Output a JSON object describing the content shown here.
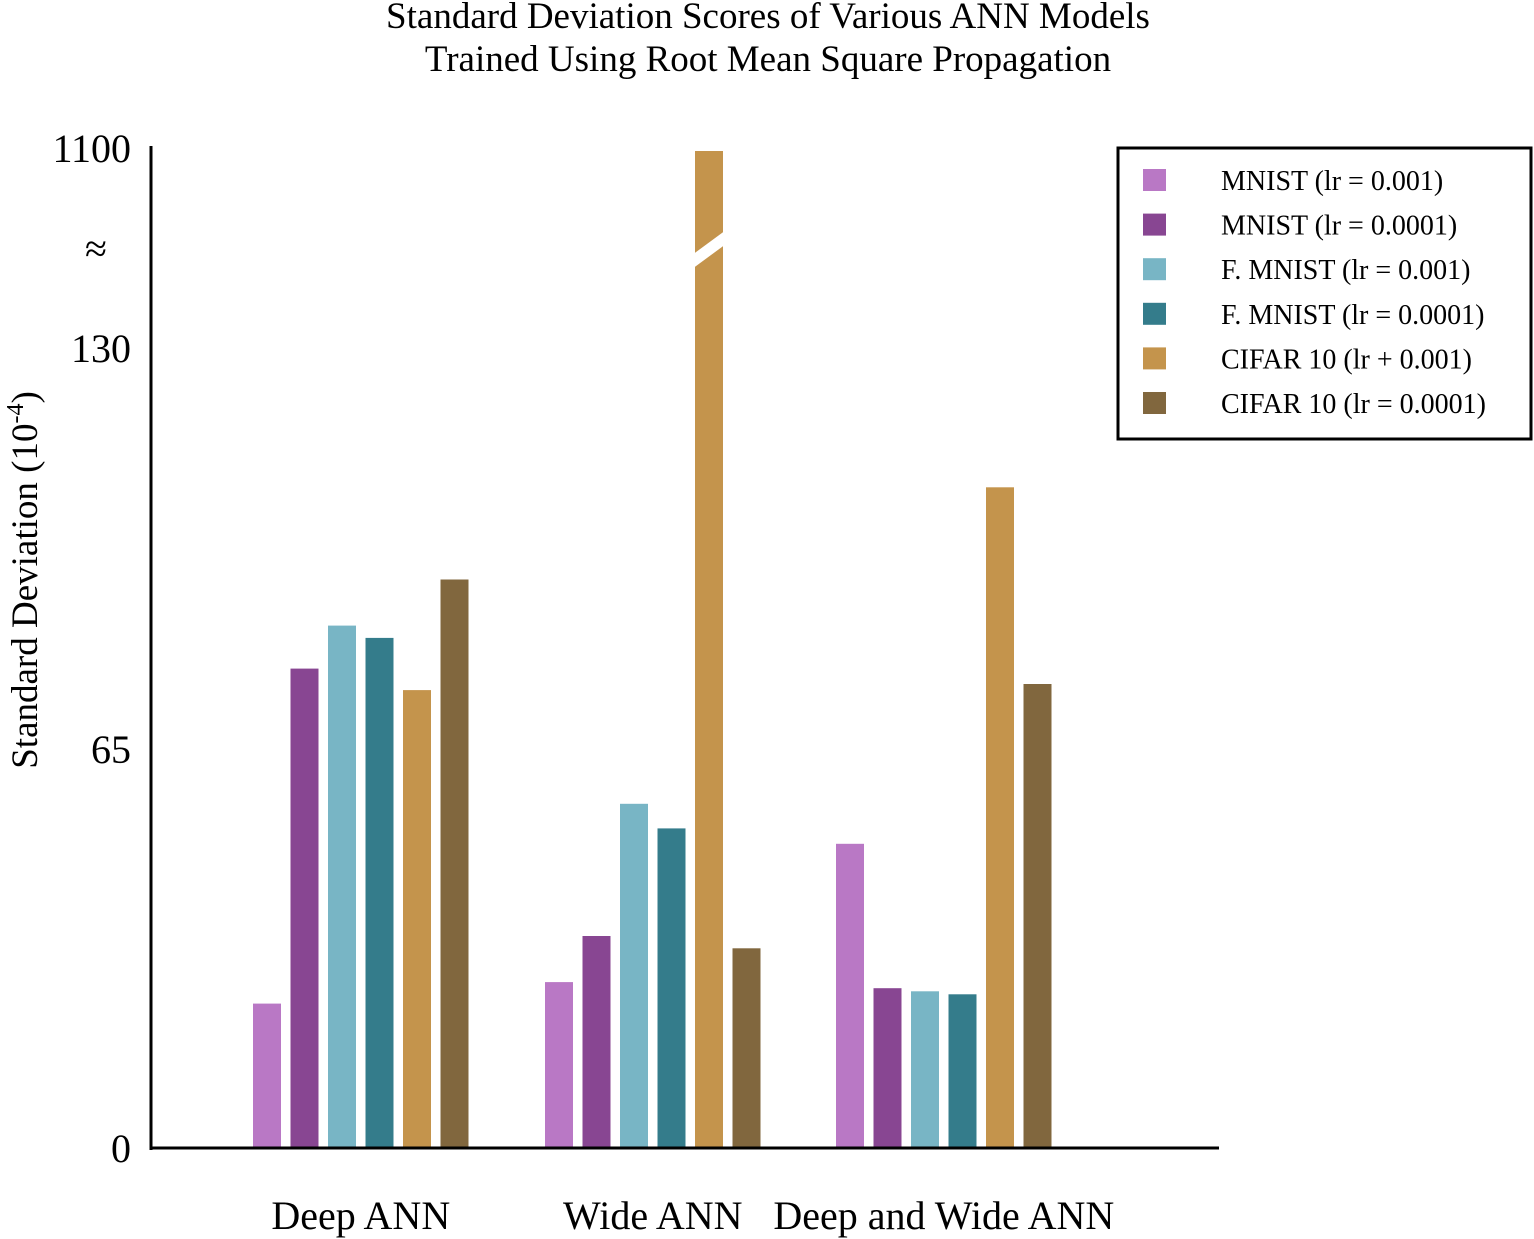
{
  "chart_data": {
    "type": "bar",
    "title": [
      "Standard Deviation Scores of Various ANN Models",
      "Trained Using Root Mean Square Propagation"
    ],
    "ylabel": "Standard Deviation (10",
    "ylabel_exponent": "-4",
    "ylabel_close": ")",
    "xlabel": "",
    "y_ticks": [
      "0",
      "65",
      "130",
      "1100"
    ],
    "axis_break_symbol": "≈",
    "axis_segments": [
      {
        "from": 0,
        "to": 130
      },
      {
        "from": 130,
        "to": 1100
      }
    ],
    "categories": [
      "Deep ANN",
      "Wide ANN",
      "Deep and Wide ANN"
    ],
    "series": [
      {
        "name": "MNIST (lr = 0.001)",
        "color": "#b978c5",
        "values": [
          23.5,
          27,
          49.5
        ]
      },
      {
        "name": "MNIST (lr = 0.0001)",
        "color": "#884692",
        "values": [
          78,
          34.5,
          26
        ]
      },
      {
        "name": "F. MNIST (lr = 0.001)",
        "color": "#78b5c5",
        "values": [
          85,
          56,
          25.5
        ]
      },
      {
        "name": "F. MNIST (lr = 0.0001)",
        "color": "#347c8b",
        "values": [
          83,
          52,
          25
        ]
      },
      {
        "name": "CIFAR 10 (lr + 0.001)",
        "color": "#c4944c",
        "values": [
          74.5,
          1100,
          107.5
        ]
      },
      {
        "name": "CIFAR 10 (lr = 0.0001)",
        "color": "#81673e",
        "values": [
          92.5,
          32.5,
          75.5
        ]
      }
    ],
    "legend_position": "top-right",
    "grid": false
  }
}
